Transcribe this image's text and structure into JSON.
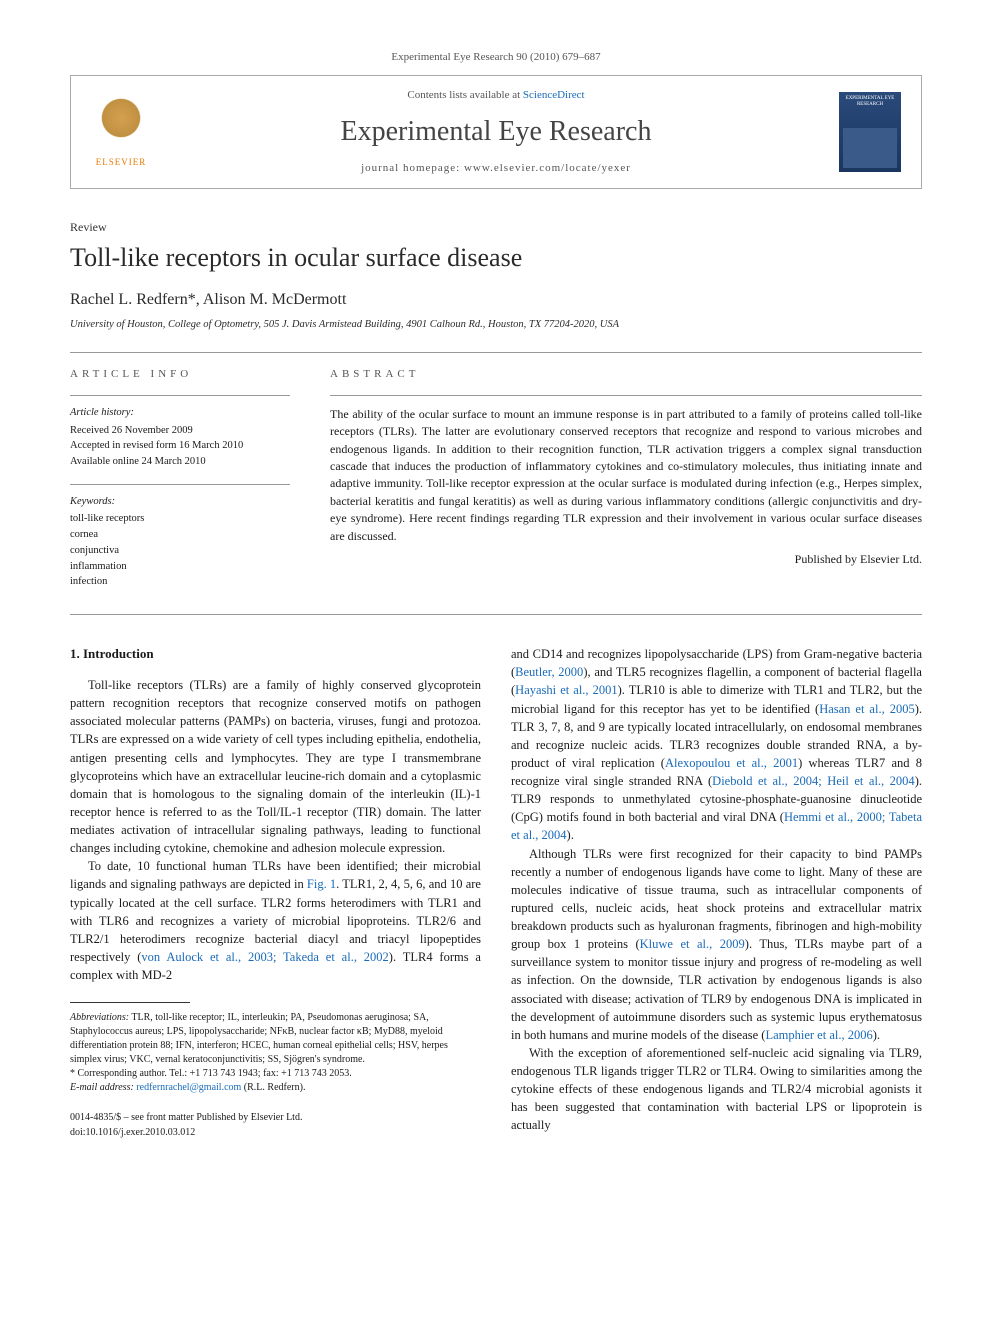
{
  "header": {
    "citation": "Experimental Eye Research 90 (2010) 679–687",
    "contents_text": "Contents lists available at ",
    "contents_link": "ScienceDirect",
    "journal_name": "Experimental Eye Research",
    "homepage_label": "journal homepage: ",
    "homepage_url": "www.elsevier.com/locate/yexer",
    "publisher_logo_text": "ELSEVIER",
    "cover_title": "EXPERIMENTAL EYE RESEARCH"
  },
  "article": {
    "type": "Review",
    "title": "Toll-like receptors in ocular surface disease",
    "authors": "Rachel L. Redfern*, Alison M. McDermott",
    "affiliation": "University of Houston, College of Optometry, 505 J. Davis Armistead Building, 4901 Calhoun Rd., Houston, TX 77204-2020, USA"
  },
  "info": {
    "label": "ARTICLE INFO",
    "history_heading": "Article history:",
    "history_lines": [
      "Received 26 November 2009",
      "Accepted in revised form 16 March 2010",
      "Available online 24 March 2010"
    ],
    "keywords_heading": "Keywords:",
    "keywords": [
      "toll-like receptors",
      "cornea",
      "conjunctiva",
      "inflammation",
      "infection"
    ]
  },
  "abstract": {
    "label": "ABSTRACT",
    "text": "The ability of the ocular surface to mount an immune response is in part attributed to a family of proteins called toll-like receptors (TLRs). The latter are evolutionary conserved receptors that recognize and respond to various microbes and endogenous ligands. In addition to their recognition function, TLR activation triggers a complex signal transduction cascade that induces the production of inflammatory cytokines and co-stimulatory molecules, thus initiating innate and adaptive immunity. Toll-like receptor expression at the ocular surface is modulated during infection (e.g., Herpes simplex, bacterial keratitis and fungal keratitis) as well as during various inflammatory conditions (allergic conjunctivitis and dry-eye syndrome). Here recent findings regarding TLR expression and their involvement in various ocular surface diseases are discussed.",
    "publisher": "Published by Elsevier Ltd."
  },
  "body": {
    "intro_heading": "1. Introduction",
    "paragraphs": [
      "Toll-like receptors (TLRs) are a family of highly conserved glycoprotein pattern recognition receptors that recognize conserved motifs on pathogen associated molecular patterns (PAMPs) on bacteria, viruses, fungi and protozoa. TLRs are expressed on a wide variety of cell types including epithelia, endothelia, antigen presenting cells and lymphocytes. They are type I transmembrane glycoproteins which have an extracellular leucine-rich domain and a cytoplasmic domain that is homologous to the signaling domain of the interleukin (IL)-1 receptor hence is referred to as the Toll/IL-1 receptor (TIR) domain. The latter mediates activation of intracellular signaling pathways, leading to functional changes including cytokine, chemokine and adhesion molecule expression.",
      "To date, 10 functional human TLRs have been identified; their microbial ligands and signaling pathways are depicted in Fig. 1. TLR1, 2, 4, 5, 6, and 10 are typically located at the cell surface. TLR2 forms heterodimers with TLR1 and with TLR6 and recognizes a variety of microbial lipoproteins. TLR2/6 and TLR2/1 heterodimers recognize bacterial diacyl and triacyl lipopeptides respectively (von Aulock et al., 2003; Takeda et al., 2002). TLR4 forms a complex with MD-2",
      "and CD14 and recognizes lipopolysaccharide (LPS) from Gram-negative bacteria (Beutler, 2000), and TLR5 recognizes flagellin, a component of bacterial flagella (Hayashi et al., 2001). TLR10 is able to dimerize with TLR1 and TLR2, but the microbial ligand for this receptor has yet to be identified (Hasan et al., 2005). TLR 3, 7, 8, and 9 are typically located intracellularly, on endosomal membranes and recognize nucleic acids. TLR3 recognizes double stranded RNA, a by-product of viral replication (Alexopoulou et al., 2001) whereas TLR7 and 8 recognize viral single stranded RNA (Diebold et al., 2004; Heil et al., 2004). TLR9 responds to unmethylated cytosine-phosphate-guanosine dinucleotide (CpG) motifs found in both bacterial and viral DNA (Hemmi et al., 2000; Tabeta et al., 2004).",
      "Although TLRs were first recognized for their capacity to bind PAMPs recently a number of endogenous ligands have come to light. Many of these are molecules indicative of tissue trauma, such as intracellular components of ruptured cells, nucleic acids, heat shock proteins and extracellular matrix breakdown products such as hyaluronan fragments, fibrinogen and high-mobility group box 1 proteins (Kluwe et al., 2009). Thus, TLRs maybe part of a surveillance system to monitor tissue injury and progress of re-modeling as well as infection. On the downside, TLR activation by endogenous ligands is also associated with disease; activation of TLR9 by endogenous DNA is implicated in the development of autoimmune disorders such as systemic lupus erythematosus in both humans and murine models of the disease (Lamphier et al., 2006).",
      "With the exception of aforementioned self-nucleic acid signaling via TLR9, endogenous TLR ligands trigger TLR2 or TLR4. Owing to similarities among the cytokine effects of these endogenous ligands and TLR2/4 microbial agonists it has been suggested that contamination with bacterial LPS or lipoprotein is actually"
    ],
    "fig_ref": "Fig. 1",
    "refs": {
      "vonaulock": "von Aulock et al., 2003; Takeda et al., 2002",
      "beutler": "Beutler, 2000",
      "hayashi": "Hayashi et al., 2001",
      "hasan": "Hasan et al., 2005",
      "alexo": "Alexopoulou et al., 2001",
      "diebold": "Diebold et al., 2004; Heil et al., 2004",
      "hemmi": "Hemmi et al., 2000; Tabeta et al., 2004",
      "kluwe": "Kluwe et al., 2009",
      "lamphier": "Lamphier et al., 2006"
    }
  },
  "footnotes": {
    "abbrev_label": "Abbreviations:",
    "abbrev_text": " TLR, toll-like receptor; IL, interleukin; PA, Pseudomonas aeruginosa; SA, Staphylococcus aureus; LPS, lipopolysaccharide; NFκB, nuclear factor κB; MyD88, myeloid differentiation protein 88; IFN, interferon; HCEC, human corneal epithelial cells; HSV, herpes simplex virus; VKC, vernal keratoconjunctivitis; SS, Sjögren's syndrome.",
    "corresponding_label": "* Corresponding author. ",
    "corresponding_text": "Tel.: +1 713 743 1943; fax: +1 713 743 2053.",
    "email_label": "E-mail address: ",
    "email": "redfernrachel@gmail.com",
    "email_suffix": " (R.L. Redfern).",
    "copyright": "0014-4835/$ – see front matter Published by Elsevier Ltd.",
    "doi": "doi:10.1016/j.exer.2010.03.012"
  }
}
